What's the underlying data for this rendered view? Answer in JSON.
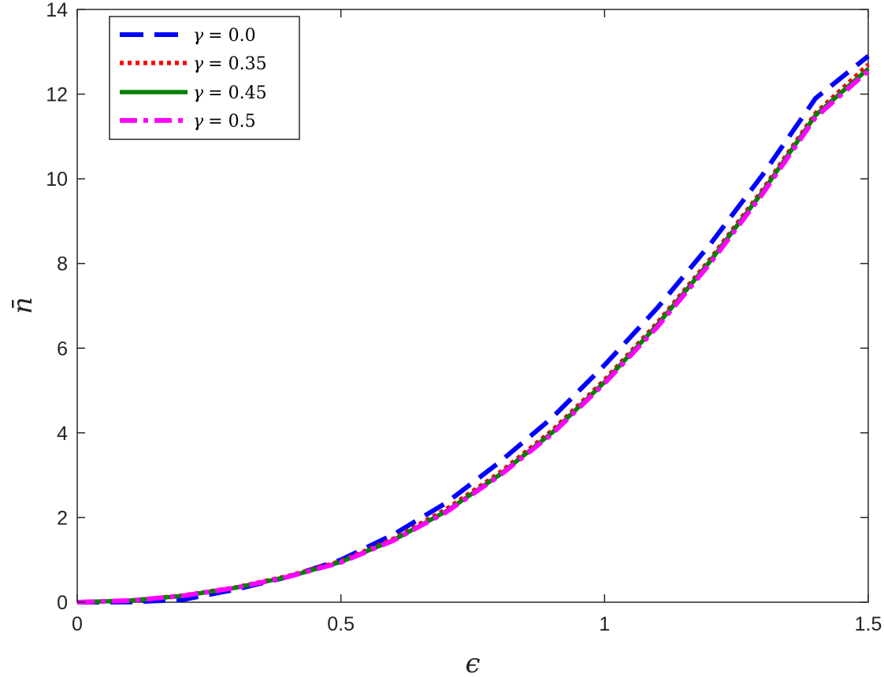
{
  "chart_data": {
    "type": "line",
    "xlabel": "ϵ",
    "ylabel": "n̄",
    "xlim": [
      0,
      1.5
    ],
    "ylim": [
      0,
      14
    ],
    "x_ticks": [
      "0",
      "0.5",
      "1",
      "1.5"
    ],
    "y_ticks": [
      "0",
      "2",
      "4",
      "6",
      "8",
      "10",
      "12",
      "14"
    ],
    "grid": false,
    "legend_position": "top-left",
    "series": [
      {
        "name": "γ = 0.0",
        "color": "#0000ff",
        "style": "dashed",
        "x": [
          0,
          0.1,
          0.2,
          0.3,
          0.4,
          0.5,
          0.6,
          0.7,
          0.8,
          0.9,
          1.0,
          1.1,
          1.2,
          1.3,
          1.4,
          1.5
        ],
        "y": [
          0,
          0.005,
          0.06,
          0.3,
          0.6,
          1.0,
          1.6,
          2.35,
          3.3,
          4.35,
          5.6,
          6.95,
          8.45,
          10.1,
          11.9,
          12.9
        ]
      },
      {
        "name": "γ = 0.35",
        "color": "#ff0000",
        "style": "dotted",
        "x": [
          0,
          0.1,
          0.2,
          0.3,
          0.4,
          0.5,
          0.6,
          0.7,
          0.8,
          0.9,
          1.0,
          1.1,
          1.2,
          1.3,
          1.4,
          1.5
        ],
        "y": [
          0,
          0.04,
          0.16,
          0.35,
          0.62,
          0.97,
          1.5,
          2.2,
          3.05,
          4.05,
          5.25,
          6.6,
          8.1,
          9.75,
          11.55,
          12.7
        ]
      },
      {
        "name": "γ = 0.45",
        "color": "#008000",
        "style": "solid",
        "x": [
          0,
          0.1,
          0.2,
          0.3,
          0.4,
          0.5,
          0.6,
          0.7,
          0.8,
          0.9,
          1.0,
          1.1,
          1.2,
          1.3,
          1.4,
          1.5
        ],
        "y": [
          0,
          0.04,
          0.15,
          0.34,
          0.6,
          0.95,
          1.47,
          2.15,
          3.0,
          4.0,
          5.2,
          6.55,
          8.05,
          9.7,
          11.5,
          12.6
        ]
      },
      {
        "name": "γ = 0.5",
        "color": "#ff00ff",
        "style": "dashdot",
        "x": [
          0,
          0.1,
          0.2,
          0.3,
          0.4,
          0.5,
          0.6,
          0.7,
          0.8,
          0.9,
          1.0,
          1.1,
          1.2,
          1.3,
          1.4,
          1.5
        ],
        "y": [
          0,
          0.04,
          0.15,
          0.34,
          0.6,
          0.94,
          1.46,
          2.13,
          2.98,
          3.97,
          5.17,
          6.5,
          8.0,
          9.65,
          11.45,
          12.55
        ]
      }
    ],
    "legend": [
      {
        "symbol": "γ",
        "value": "= 0.0"
      },
      {
        "symbol": "γ",
        "value": "= 0.35"
      },
      {
        "symbol": "γ",
        "value": "= 0.45"
      },
      {
        "symbol": "γ",
        "value": "= 0.5"
      }
    ]
  }
}
